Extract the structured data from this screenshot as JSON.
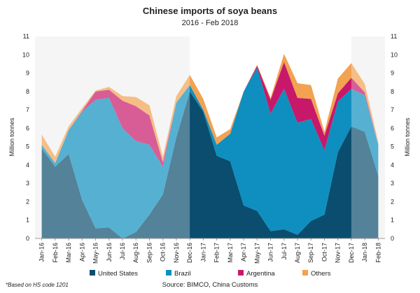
{
  "chart_data": {
    "type": "area",
    "stacked": true,
    "title": "Chinese imports of soya beans",
    "subtitle": "2016 - Feb 2018",
    "ylabel_left": "Million tonnes",
    "ylabel_right": "Million tonnes",
    "ylim": [
      0,
      11
    ],
    "yticks": [
      "0",
      "1",
      "2",
      "3",
      "4",
      "5",
      "6",
      "7",
      "8",
      "9",
      "10",
      "11"
    ],
    "grid": false,
    "legend_position": "bottom",
    "categories": [
      "Jan-16",
      "Feb-16",
      "Mar-16",
      "Apr-16",
      "May-16",
      "Jun-16",
      "Jul-16",
      "Aug-16",
      "Sep-16",
      "Oct-16",
      "Nov-16",
      "Dec-16",
      "Jan-17",
      "Feb-17",
      "Mar-17",
      "Apr-17",
      "May-17",
      "Jun-17",
      "Jul-17",
      "Aug-17",
      "Sep-17",
      "Oct-17",
      "Nov-17",
      "Dec-17",
      "Jan-18",
      "Feb-18"
    ],
    "series": [
      {
        "name": "United States",
        "color": "#0a4d6e",
        "values": [
          4.9,
          3.9,
          4.6,
          2.1,
          0.55,
          0.6,
          0.0,
          0.35,
          1.3,
          2.4,
          5.5,
          8.0,
          6.9,
          4.5,
          4.2,
          1.8,
          1.5,
          0.4,
          0.5,
          0.2,
          0.95,
          1.3,
          4.7,
          6.1,
          5.8,
          3.4
        ]
      },
      {
        "name": "Brazil",
        "color": "#0e8fbf",
        "values": [
          0.2,
          0.2,
          1.3,
          4.8,
          7.0,
          7.05,
          6.0,
          4.95,
          3.8,
          1.5,
          1.9,
          0.35,
          0.1,
          0.6,
          1.5,
          6.2,
          7.8,
          6.4,
          7.65,
          6.1,
          5.55,
          3.5,
          2.75,
          2.05,
          2.0,
          1.7
        ]
      },
      {
        "name": "Argentina",
        "color": "#c7186a",
        "values": [
          0.0,
          0.0,
          0.0,
          0.05,
          0.45,
          0.45,
          1.5,
          1.9,
          1.6,
          0.25,
          0.0,
          0.0,
          0.0,
          0.0,
          0.0,
          0.0,
          0.1,
          0.75,
          1.45,
          1.35,
          1.1,
          0.8,
          0.45,
          0.6,
          0.15,
          0.0
        ]
      },
      {
        "name": "Others",
        "color": "#f2a251",
        "values": [
          0.55,
          0.35,
          0.2,
          0.15,
          0.05,
          0.15,
          0.25,
          0.5,
          0.55,
          0.3,
          0.35,
          0.55,
          0.6,
          0.4,
          0.25,
          0.0,
          0.05,
          0.1,
          0.45,
          0.8,
          0.75,
          0.2,
          0.8,
          0.8,
          0.45,
          0.15
        ]
      }
    ],
    "shaded_periods": [
      {
        "from": "Jan-16",
        "to": "Dec-16"
      },
      {
        "from": "Dec-17",
        "to": "Feb-18"
      }
    ]
  },
  "footnote": "*Based on HS code 1201",
  "source": "Source: BIMCO, China Customs"
}
